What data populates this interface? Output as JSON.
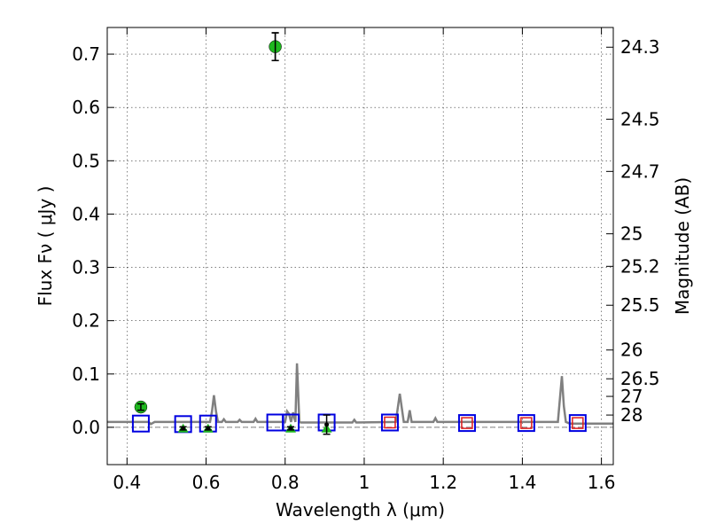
{
  "chart_data": {
    "type": "scatter",
    "xlabel": "Wavelength  λ (μm)",
    "ylabel": "Flux  Fν  ( μJy )",
    "y2label": "Magnitude (AB)",
    "xlim": [
      0.35,
      1.63
    ],
    "ylim": [
      -0.07,
      0.75
    ],
    "grid": true,
    "x_ticks": [
      0.4,
      0.6,
      0.8,
      1.0,
      1.2,
      1.4,
      1.6
    ],
    "x_tick_labels": [
      "0.4",
      "0.6",
      "0.8",
      "1",
      "1.2",
      "1.4",
      "1.6"
    ],
    "y_ticks": [
      0.0,
      0.1,
      0.2,
      0.3,
      0.4,
      0.5,
      0.6,
      0.7
    ],
    "y_tick_labels": [
      "0.0",
      "0.1",
      "0.2",
      "0.3",
      "0.4",
      "0.5",
      "0.6",
      "0.7"
    ],
    "mag_ticks": [
      {
        "flux": 0.713,
        "label": "24.3"
      },
      {
        "flux": 0.578,
        "label": "24.5"
      },
      {
        "flux": 0.48,
        "label": "24.7"
      },
      {
        "flux": 0.363,
        "label": "25"
      },
      {
        "flux": 0.302,
        "label": "25.2"
      },
      {
        "flux": 0.229,
        "label": "25.5"
      },
      {
        "flux": 0.145,
        "label": "26"
      },
      {
        "flux": 0.091,
        "label": "26.5"
      },
      {
        "flux": 0.058,
        "label": "27"
      },
      {
        "flux": 0.023,
        "label": "28"
      }
    ],
    "measured_points": [
      {
        "x": 0.435,
        "y": 0.038,
        "err": 0.006
      },
      {
        "x": 0.542,
        "y": -0.002,
        "err": 0.003
      },
      {
        "x": 0.605,
        "y": -0.002,
        "err": 0.003
      },
      {
        "x": 0.775,
        "y": 0.714,
        "err": 0.026
      },
      {
        "x": 0.814,
        "y": -0.002,
        "err": 0.003
      },
      {
        "x": 0.905,
        "y": 0.005,
        "err": 0.018
      }
    ],
    "upper_limit_markers": [
      {
        "x": 0.542,
        "y": -0.003
      },
      {
        "x": 0.605,
        "y": -0.003
      },
      {
        "x": 0.814,
        "y": -0.003
      },
      {
        "x": 0.905,
        "y": -0.003
      }
    ],
    "model_boxes_blue": [
      {
        "x": 0.435,
        "y": 0.007
      },
      {
        "x": 0.542,
        "y": 0.006
      },
      {
        "x": 0.605,
        "y": 0.007
      },
      {
        "x": 0.775,
        "y": 0.009
      },
      {
        "x": 0.814,
        "y": 0.009
      },
      {
        "x": 0.905,
        "y": 0.009
      },
      {
        "x": 1.065,
        "y": 0.009
      },
      {
        "x": 1.26,
        "y": 0.008
      },
      {
        "x": 1.41,
        "y": 0.008
      },
      {
        "x": 1.54,
        "y": 0.008
      }
    ],
    "model_boxes_red": [
      {
        "x": 1.065,
        "y": 0.009
      },
      {
        "x": 1.26,
        "y": 0.008
      },
      {
        "x": 1.41,
        "y": 0.008
      },
      {
        "x": 1.54,
        "y": 0.008
      }
    ],
    "zero_line": 0.0,
    "sed_curve": {
      "x": [
        0.35,
        0.455,
        0.46,
        0.47,
        0.61,
        0.615,
        0.62,
        0.625,
        0.63,
        0.64,
        0.645,
        0.65,
        0.68,
        0.685,
        0.69,
        0.72,
        0.725,
        0.73,
        0.8,
        0.805,
        0.81,
        0.815,
        0.82,
        0.826,
        0.83,
        0.836,
        0.84,
        0.97,
        0.975,
        0.98,
        1.08,
        1.09,
        1.1,
        1.11,
        1.115,
        1.12,
        1.175,
        1.18,
        1.185,
        1.49,
        1.5,
        1.505,
        1.51,
        1.52,
        1.63
      ],
      "y": [
        0.01,
        0.01,
        0.006,
        0.01,
        0.01,
        0.03,
        0.06,
        0.03,
        0.01,
        0.01,
        0.015,
        0.01,
        0.01,
        0.014,
        0.01,
        0.01,
        0.016,
        0.01,
        0.01,
        0.03,
        0.025,
        0.01,
        0.028,
        0.01,
        0.12,
        0.01,
        0.009,
        0.009,
        0.014,
        0.009,
        0.01,
        0.063,
        0.01,
        0.01,
        0.032,
        0.01,
        0.01,
        0.017,
        0.01,
        0.01,
        0.096,
        0.04,
        0.01,
        0.007,
        0.007
      ]
    },
    "colors": {
      "measured": "#1fb81f",
      "upper_limit": "#1fb81f",
      "box_blue": "#0000e0",
      "box_red": "#e01b1b",
      "curve": "#808080",
      "errorbar": "#000000",
      "zero_line": "#808080"
    }
  }
}
